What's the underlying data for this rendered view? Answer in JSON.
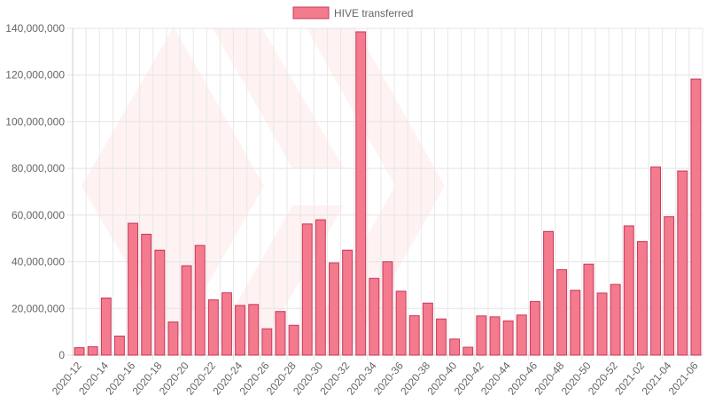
{
  "chart_data": {
    "type": "bar",
    "title": "",
    "xlabel": "",
    "ylabel": "",
    "legend": {
      "position": "top",
      "entries": [
        "HIVE transferred"
      ]
    },
    "grid": true,
    "ylim": [
      0,
      140000000
    ],
    "yticks": [
      0,
      20000000,
      40000000,
      60000000,
      80000000,
      100000000,
      120000000,
      140000000
    ],
    "categories": [
      "2020-12",
      "2020-13",
      "2020-14",
      "2020-15",
      "2020-16",
      "2020-17",
      "2020-18",
      "2020-19",
      "2020-20",
      "2020-21",
      "2020-22",
      "2020-23",
      "2020-24",
      "2020-25",
      "2020-26",
      "2020-27",
      "2020-28",
      "2020-29",
      "2020-30",
      "2020-31",
      "2020-32",
      "2020-33",
      "2020-34",
      "2020-35",
      "2020-36",
      "2020-37",
      "2020-38",
      "2020-39",
      "2020-40",
      "2020-41",
      "2020-42",
      "2020-43",
      "2020-44",
      "2020-45",
      "2020-46",
      "2020-47",
      "2020-48",
      "2020-49",
      "2020-50",
      "2020-51",
      "2020-52",
      "2020-53",
      "2021-02",
      "2021-03",
      "2021-04",
      "2021-05",
      "2021-06"
    ],
    "xtick_labels": [
      "2020-12",
      "2020-14",
      "2020-16",
      "2020-18",
      "2020-20",
      "2020-22",
      "2020-24",
      "2020-26",
      "2020-28",
      "2020-30",
      "2020-32",
      "2020-34",
      "2020-36",
      "2020-38",
      "2020-40",
      "2020-42",
      "2020-44",
      "2020-46",
      "2020-48",
      "2020-50",
      "2020-52",
      "2021-02",
      "2021-04",
      "2021-06"
    ],
    "series": [
      {
        "name": "HIVE transferred",
        "color": "#f47a8e",
        "border_color": "#c8385a",
        "values": [
          3200000,
          3600000,
          24500000,
          8200000,
          56500000,
          51800000,
          45000000,
          14200000,
          38300000,
          47000000,
          23700000,
          26700000,
          21300000,
          21700000,
          11300000,
          18700000,
          12800000,
          56200000,
          58000000,
          39500000,
          45000000,
          138500000,
          32900000,
          40000000,
          27400000,
          16900000,
          22300000,
          15500000,
          6900000,
          3400000,
          16800000,
          16400000,
          14700000,
          17200000,
          23000000,
          53000000,
          36600000,
          27800000,
          39000000,
          26600000,
          30300000,
          55400000,
          48700000,
          80600000,
          59300000,
          78900000,
          118300000
        ]
      }
    ]
  }
}
